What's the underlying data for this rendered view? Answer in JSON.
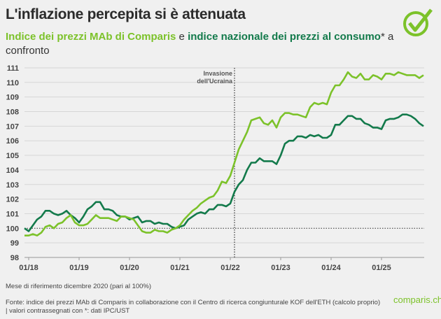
{
  "header": {
    "title": "L'inflazione percepita si è attenuata",
    "subtitle_part1": "Indice dei prezzi MAb di Comparis",
    "subtitle_part2": " e ",
    "subtitle_part3": "indice nazionale dei prezzi al consumo",
    "subtitle_part4": "* a confronto"
  },
  "logo_icon": "check-circle-icon",
  "footer": {
    "note": "Mese di riferimento dicembre 2020 (pari al 100%)",
    "source": "Fonte: indice dei prezzi MAb di Comparis in collaborazione con il Centro di ricerca congiunturale KOF dell'ETH (calcolo proprio) | valori contrassegnati con *: dati IPC/UST",
    "brand": "comparis.ch"
  },
  "chart_data": {
    "type": "line",
    "title": "",
    "xlabel": "",
    "ylabel": "",
    "ylim": [
      98,
      111
    ],
    "yticks": [
      98,
      99,
      100,
      101,
      102,
      103,
      104,
      105,
      106,
      107,
      108,
      109,
      110,
      111
    ],
    "xtick_labels": [
      "01/18",
      "01/19",
      "01/20",
      "01/21",
      "01/22",
      "01/23",
      "01/24",
      "01/25"
    ],
    "grid": true,
    "reference_line": 100,
    "annotation": {
      "text_line1": "Invasione",
      "text_line2": "dell'Ucraina",
      "x": "02/22"
    },
    "colors": {
      "comparis": "#7cc22a",
      "cpi": "#137a4b",
      "background": "#f0f0f0"
    },
    "x": [
      "12/17",
      "01/18",
      "02/18",
      "03/18",
      "04/18",
      "05/18",
      "06/18",
      "07/18",
      "08/18",
      "09/18",
      "10/18",
      "11/18",
      "12/18",
      "01/19",
      "02/19",
      "03/19",
      "04/19",
      "05/19",
      "06/19",
      "07/19",
      "08/19",
      "09/19",
      "10/19",
      "11/19",
      "12/19",
      "01/20",
      "02/20",
      "03/20",
      "04/20",
      "05/20",
      "06/20",
      "07/20",
      "08/20",
      "09/20",
      "10/20",
      "11/20",
      "12/20",
      "01/21",
      "02/21",
      "03/21",
      "04/21",
      "05/21",
      "06/21",
      "07/21",
      "08/21",
      "09/21",
      "10/21",
      "11/21",
      "12/21",
      "01/22",
      "02/22",
      "03/22",
      "04/22",
      "05/22",
      "06/22",
      "07/22",
      "08/22",
      "09/22",
      "10/22",
      "11/22",
      "12/22",
      "01/23",
      "02/23",
      "03/23",
      "04/23",
      "05/23",
      "06/23",
      "07/23",
      "08/23",
      "09/23",
      "10/23",
      "11/23",
      "12/23",
      "01/24",
      "02/24",
      "03/24",
      "04/24",
      "05/24",
      "06/24",
      "07/24",
      "08/24",
      "09/24",
      "10/24",
      "11/24",
      "12/24",
      "01/25",
      "02/25",
      "03/25",
      "04/25",
      "05/25",
      "06/25",
      "07/25",
      "08/25",
      "09/25",
      "10/25",
      "11/25"
    ],
    "series": [
      {
        "name": "Indice dei prezzi MAb di Comparis",
        "color": "#7cc22a",
        "values": [
          99.5,
          99.5,
          99.6,
          99.5,
          99.7,
          100.1,
          100.2,
          100.0,
          100.3,
          100.4,
          100.7,
          100.9,
          100.4,
          100.2,
          100.2,
          100.3,
          100.6,
          100.9,
          100.7,
          100.7,
          100.7,
          100.6,
          100.5,
          100.8,
          100.8,
          100.7,
          100.6,
          100.2,
          99.8,
          99.7,
          99.7,
          99.9,
          99.8,
          99.8,
          99.7,
          99.9,
          100.0,
          100.2,
          100.6,
          100.9,
          101.2,
          101.4,
          101.7,
          101.9,
          102.1,
          102.2,
          102.6,
          103.2,
          103.1,
          103.6,
          104.5,
          105.4,
          106.0,
          106.6,
          107.4,
          107.5,
          107.6,
          107.2,
          107.1,
          107.4,
          106.9,
          107.6,
          107.9,
          107.9,
          107.8,
          107.8,
          107.7,
          107.6,
          108.3,
          108.6,
          108.5,
          108.6,
          108.5,
          109.3,
          109.8,
          109.8,
          110.2,
          110.7,
          110.4,
          110.3,
          110.6,
          110.2,
          110.2,
          110.5,
          110.4,
          110.2,
          110.6,
          110.6,
          110.5,
          110.7,
          110.6,
          110.5,
          110.5,
          110.5,
          110.3,
          110.5
        ]
      },
      {
        "name": "indice nazionale dei prezzi al consumo",
        "color": "#137a4b",
        "values": [
          100.0,
          99.8,
          100.2,
          100.6,
          100.8,
          101.2,
          101.2,
          101.0,
          100.9,
          101.0,
          101.2,
          100.9,
          100.7,
          100.4,
          100.8,
          101.3,
          101.5,
          101.8,
          101.8,
          101.3,
          101.3,
          101.2,
          100.9,
          100.8,
          100.8,
          100.6,
          100.7,
          100.8,
          100.4,
          100.5,
          100.5,
          100.3,
          100.4,
          100.3,
          100.3,
          100.1,
          100.0,
          100.1,
          100.2,
          100.6,
          100.8,
          101.0,
          101.1,
          101.0,
          101.3,
          101.3,
          101.6,
          101.6,
          101.5,
          101.7,
          102.5,
          103.0,
          103.3,
          104.0,
          104.5,
          104.5,
          104.8,
          104.6,
          104.6,
          104.6,
          104.4,
          105.0,
          105.8,
          106.0,
          106.0,
          106.3,
          106.3,
          106.2,
          106.4,
          106.3,
          106.4,
          106.2,
          106.2,
          106.4,
          107.1,
          107.1,
          107.4,
          107.7,
          107.7,
          107.5,
          107.5,
          107.2,
          107.1,
          106.9,
          106.9,
          106.8,
          107.4,
          107.5,
          107.5,
          107.6,
          107.8,
          107.8,
          107.7,
          107.5,
          107.2,
          107.0
        ]
      }
    ]
  }
}
